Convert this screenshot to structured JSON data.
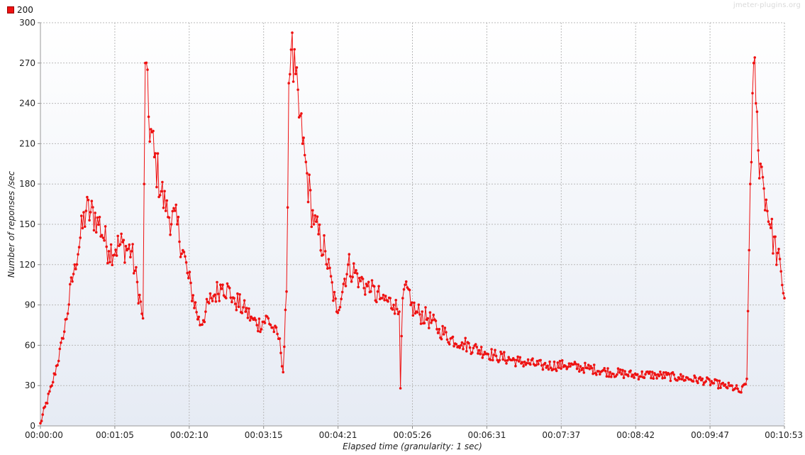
{
  "legend": {
    "label": "200",
    "color": "#ee1111"
  },
  "watermark": "jmeter-plugins.org",
  "chart_data": {
    "type": "line",
    "title": "",
    "xlabel": "Elapsed time (granularity: 1 sec)",
    "ylabel": "Number of reponses /sec",
    "ylim": [
      0,
      300
    ],
    "yticks": [
      0,
      30,
      60,
      90,
      120,
      150,
      180,
      210,
      240,
      270,
      300
    ],
    "xlim": [
      0,
      653
    ],
    "xtick_labels": [
      "00:00:00",
      "00:01:05",
      "00:02:10",
      "00:03:15",
      "00:04:21",
      "00:05:26",
      "00:06:31",
      "00:07:37",
      "00:08:42",
      "00:09:47",
      "00:10:53"
    ],
    "grid": true,
    "legend_position": "top-left",
    "series": [
      {
        "name": "200",
        "color": "#ee1111",
        "x": [
          0,
          10,
          20,
          30,
          35,
          40,
          50,
          60,
          70,
          80,
          90,
          91,
          92,
          95,
          100,
          110,
          120,
          130,
          140,
          145,
          150,
          160,
          170,
          180,
          186,
          190,
          200,
          205,
          210,
          213,
          216,
          218,
          220,
          230,
          240,
          250,
          260,
          270,
          280,
          290,
          300,
          310,
          315,
          316,
          318,
          320,
          325,
          330,
          340,
          350,
          360,
          370,
          380,
          390,
          400,
          420,
          440,
          460,
          480,
          500,
          520,
          540,
          560,
          580,
          600,
          610,
          615,
          620,
          623,
          626,
          628,
          630,
          632,
          634,
          640,
          650,
          653
        ],
        "y": [
          2,
          30,
          65,
          120,
          140,
          160,
          155,
          130,
          135,
          130,
          80,
          180,
          270,
          230,
          200,
          160,
          150,
          110,
          75,
          85,
          95,
          105,
          95,
          85,
          80,
          75,
          80,
          70,
          65,
          40,
          100,
          255,
          280,
          210,
          150,
          130,
          85,
          120,
          110,
          100,
          95,
          90,
          85,
          28,
          95,
          105,
          90,
          85,
          80,
          72,
          65,
          62,
          58,
          55,
          52,
          48,
          45,
          45,
          43,
          40,
          38,
          38,
          36,
          34,
          30,
          28,
          25,
          35,
          180,
          270,
          240,
          205,
          195,
          185,
          150,
          115,
          95
        ],
        "noise": "dense high-frequency oscillation of roughly ±10 responses/sec around the plotted trend, one point per second"
      }
    ]
  }
}
